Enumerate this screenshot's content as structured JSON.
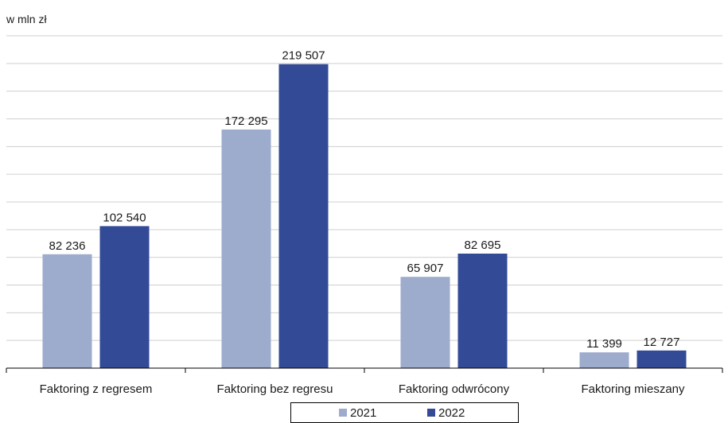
{
  "chart_data": {
    "type": "bar",
    "unit_label": "w mln zł",
    "categories": [
      "Faktoring z regresem",
      "Faktoring bez regresu",
      "Faktoring odwrócony",
      "Faktoring mieszany"
    ],
    "series": [
      {
        "name": "2021",
        "values": [
          82236,
          172295,
          65907,
          11399
        ],
        "labels": [
          "82 236",
          "172 295",
          "65 907",
          "11 399"
        ],
        "color": "#9DABCD"
      },
      {
        "name": "2022",
        "values": [
          102540,
          219507,
          82695,
          12727
        ],
        "labels": [
          "102 540",
          "219 507",
          "82 695",
          "12 727"
        ],
        "color": "#334A96"
      }
    ],
    "ylim": [
      0,
      240000
    ],
    "grid": true,
    "legend": "bottom"
  }
}
